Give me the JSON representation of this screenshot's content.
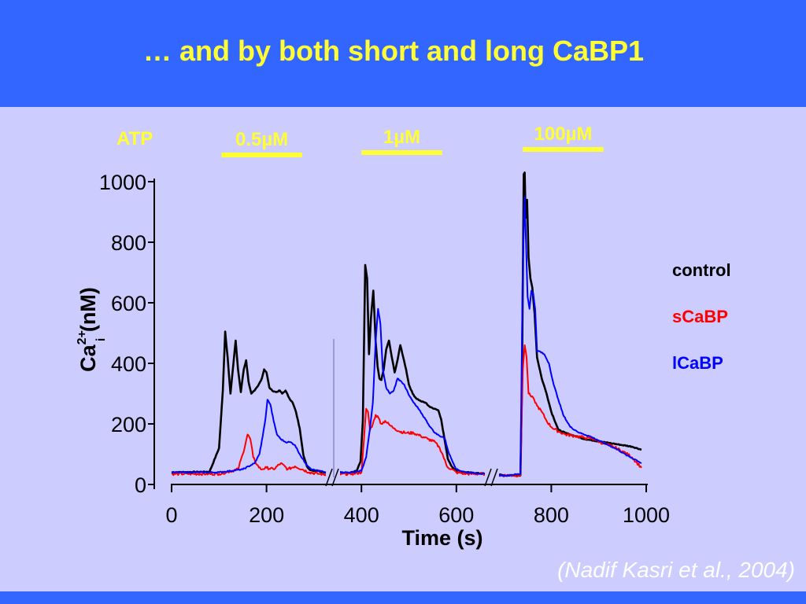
{
  "slide": {
    "title": "… and by both short and long CaBP1",
    "citation": "(Nadif Kasri et al., 2004)"
  },
  "colors": {
    "header": "#3366ff",
    "background": "#ccccff",
    "title": "#ffff33",
    "stim_bar": "#ffff33",
    "control": "#000000",
    "sCaBP": "#ff0000",
    "lCaBP": "#0000ff"
  },
  "chart_data": {
    "type": "line",
    "xlabel": "Time (s)",
    "ylabel_main": "Ca",
    "ylabel_sup": "2+",
    "ylabel_sub": "i",
    "ylabel_unit": " (nM)",
    "xlim": [
      0,
      1000
    ],
    "ylim": [
      0,
      1000
    ],
    "xticks": [
      0,
      200,
      400,
      600,
      800,
      1000
    ],
    "yticks": [
      0,
      200,
      400,
      600,
      800,
      1000
    ],
    "axis_breaks": [
      340,
      675
    ],
    "grid": false,
    "legend_position": "right",
    "stimulus_label": "ATP",
    "stimuli": [
      {
        "label": "0.5µM",
        "start": 105,
        "end": 275
      },
      {
        "label": "1µM",
        "start": 400,
        "end": 570
      },
      {
        "label": "100µM",
        "start": 740,
        "end": 910
      }
    ],
    "series": [
      {
        "name": "control",
        "color": "#000000",
        "x": [
          0,
          80,
          100,
          108,
          113,
          118,
          124,
          130,
          135,
          140,
          146,
          152,
          157,
          162,
          168,
          175,
          182,
          190,
          195,
          200,
          206,
          212,
          220,
          228,
          233,
          240,
          248,
          255,
          262,
          270,
          278,
          285,
          290,
          300,
          310,
          320,
          335,
          340,
          345,
          360,
          375,
          390,
          398,
          403,
          408,
          412,
          416,
          420,
          425,
          430,
          434,
          438,
          442,
          447,
          452,
          458,
          464,
          470,
          476,
          482,
          488,
          494,
          500,
          508,
          515,
          525,
          535,
          545,
          555,
          562,
          568,
          575,
          582,
          590,
          600,
          620,
          660,
          675,
          680,
          700,
          735,
          738,
          742,
          744,
          746,
          749,
          752,
          756,
          760,
          765,
          770,
          780,
          790,
          800,
          815,
          830,
          850,
          870,
          890,
          910,
          930,
          950,
          970,
          990
        ],
        "y": [
          40,
          42,
          120,
          310,
          505,
          420,
          300,
          395,
          475,
          380,
          305,
          380,
          410,
          340,
          300,
          310,
          325,
          350,
          380,
          370,
          320,
          310,
          305,
          310,
          300,
          310,
          285,
          270,
          240,
          185,
          95,
          60,
          50,
          45,
          45,
          40,
          40,
          38,
          40,
          40,
          38,
          45,
          75,
          210,
          725,
          680,
          430,
          550,
          640,
          470,
          390,
          350,
          345,
          380,
          445,
          475,
          420,
          370,
          410,
          460,
          420,
          380,
          330,
          300,
          285,
          275,
          270,
          255,
          250,
          245,
          215,
          150,
          85,
          60,
          45,
          40,
          35,
          35,
          35,
          30,
          30,
          300,
          1025,
          1030,
          880,
          940,
          750,
          680,
          650,
          560,
          420,
          350,
          300,
          240,
          180,
          170,
          160,
          150,
          145,
          140,
          135,
          130,
          125,
          115
        ]
      },
      {
        "name": "sCaBP",
        "color": "#ff0000",
        "x": [
          0,
          100,
          140,
          150,
          160,
          166,
          172,
          180,
          188,
          200,
          215,
          230,
          245,
          260,
          275,
          290,
          310,
          340,
          345,
          360,
          380,
          400,
          405,
          410,
          414,
          418,
          424,
          430,
          436,
          442,
          450,
          460,
          470,
          480,
          495,
          510,
          525,
          540,
          555,
          565,
          572,
          580,
          600,
          620,
          660,
          675,
          680,
          710,
          735,
          740,
          744,
          748,
          752,
          758,
          764,
          770,
          780,
          790,
          800,
          815,
          830,
          850,
          870,
          890,
          910,
          930,
          950,
          970,
          990
        ],
        "y": [
          35,
          35,
          50,
          100,
          165,
          150,
          90,
          65,
          50,
          55,
          50,
          70,
          50,
          60,
          50,
          40,
          35,
          30,
          30,
          35,
          35,
          40,
          140,
          250,
          240,
          180,
          200,
          230,
          220,
          200,
          210,
          195,
          185,
          175,
          170,
          170,
          160,
          150,
          140,
          120,
          95,
          60,
          40,
          35,
          35,
          30,
          30,
          30,
          30,
          380,
          460,
          420,
          300,
          290,
          280,
          260,
          240,
          210,
          190,
          175,
          165,
          160,
          155,
          150,
          135,
          125,
          110,
          90,
          55
        ]
      },
      {
        "name": "lCaBP",
        "color": "#0000ff",
        "x": [
          0,
          100,
          150,
          175,
          185,
          192,
          198,
          202,
          208,
          215,
          222,
          230,
          240,
          250,
          260,
          270,
          282,
          295,
          310,
          325,
          340,
          345,
          360,
          380,
          400,
          410,
          418,
          424,
          430,
          435,
          440,
          445,
          452,
          460,
          468,
          476,
          484,
          490,
          500,
          510,
          520,
          535,
          545,
          555,
          565,
          575,
          585,
          600,
          620,
          660,
          675,
          680,
          710,
          735,
          740,
          744,
          747,
          750,
          754,
          758,
          762,
          766,
          770,
          775,
          785,
          795,
          805,
          815,
          825,
          840,
          860,
          880,
          900,
          920,
          940,
          960,
          980,
          990
        ],
        "y": [
          40,
          40,
          50,
          70,
          100,
          160,
          220,
          280,
          265,
          210,
          165,
          150,
          140,
          140,
          130,
          100,
          70,
          50,
          45,
          40,
          40,
          40,
          40,
          40,
          45,
          90,
          185,
          270,
          475,
          580,
          530,
          380,
          320,
          300,
          310,
          350,
          340,
          330,
          295,
          270,
          250,
          215,
          190,
          170,
          160,
          155,
          100,
          50,
          40,
          35,
          30,
          30,
          30,
          35,
          720,
          950,
          790,
          620,
          580,
          640,
          630,
          580,
          440,
          440,
          430,
          400,
          330,
          280,
          230,
          190,
          170,
          160,
          145,
          130,
          115,
          95,
          80,
          70
        ]
      }
    ]
  }
}
